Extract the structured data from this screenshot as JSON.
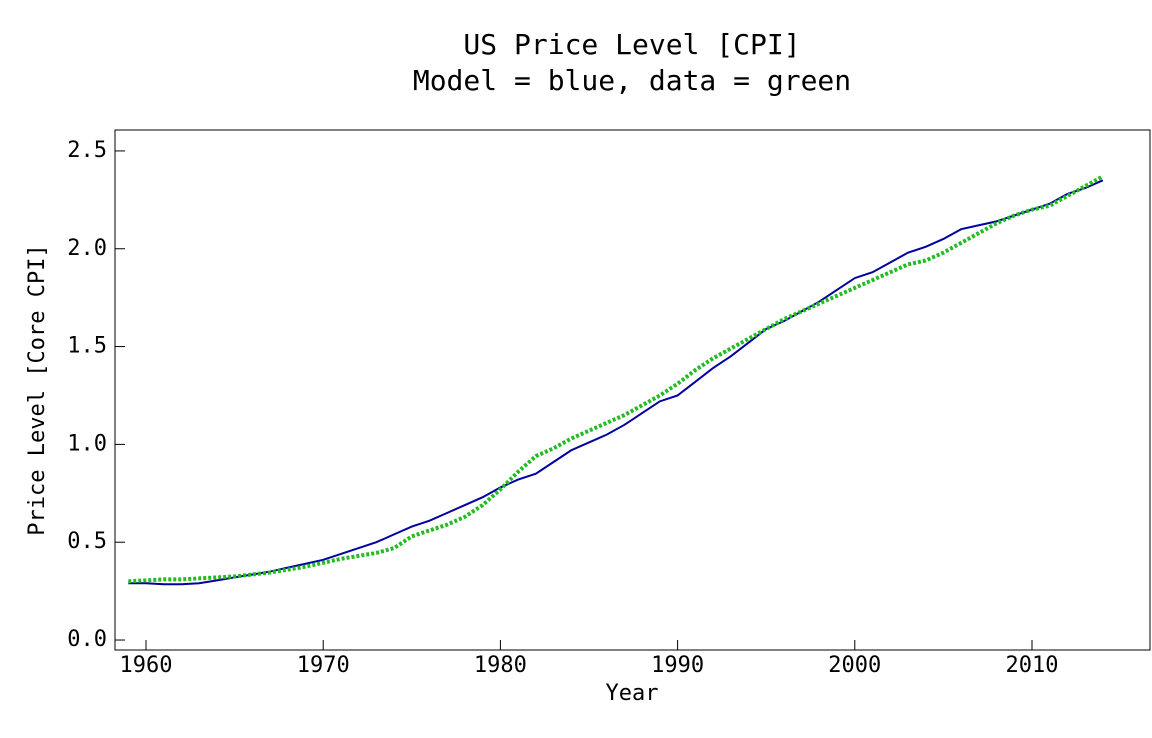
{
  "chart_data": {
    "type": "line",
    "title": "US Price Level [CPI]",
    "subtitle": "Model = blue, data = green",
    "xlabel": "Year",
    "ylabel": "Price Level [Core CPI]",
    "x": [
      1959,
      1960,
      1961,
      1962,
      1963,
      1964,
      1965,
      1966,
      1967,
      1968,
      1969,
      1970,
      1971,
      1972,
      1973,
      1974,
      1975,
      1976,
      1977,
      1978,
      1979,
      1980,
      1981,
      1982,
      1983,
      1984,
      1985,
      1986,
      1987,
      1988,
      1989,
      1990,
      1991,
      1992,
      1993,
      1994,
      1995,
      1996,
      1997,
      1998,
      1999,
      2000,
      2001,
      2002,
      2003,
      2004,
      2005,
      2006,
      2007,
      2008,
      2009,
      2010,
      2011,
      2012,
      2013,
      2014
    ],
    "series": [
      {
        "color": "#0000a0",
        "style": "solid",
        "values": [
          0.29,
          0.29,
          0.285,
          0.285,
          0.29,
          0.305,
          0.32,
          0.335,
          0.35,
          0.37,
          0.39,
          0.41,
          0.44,
          0.47,
          0.5,
          0.54,
          0.58,
          0.61,
          0.65,
          0.69,
          0.73,
          0.78,
          0.82,
          0.85,
          0.91,
          0.97,
          1.01,
          1.05,
          1.1,
          1.16,
          1.22,
          1.25,
          1.32,
          1.39,
          1.45,
          1.52,
          1.59,
          1.63,
          1.68,
          1.73,
          1.79,
          1.85,
          1.88,
          1.93,
          1.98,
          2.01,
          2.05,
          2.1,
          2.12,
          2.14,
          2.17,
          2.2,
          2.23,
          2.28,
          2.31,
          2.35
        ]
      },
      {
        "color": "#22bb22",
        "style": "dotted",
        "values": [
          0.3,
          0.305,
          0.31,
          0.31,
          0.315,
          0.32,
          0.325,
          0.335,
          0.345,
          0.36,
          0.375,
          0.395,
          0.415,
          0.43,
          0.445,
          0.47,
          0.53,
          0.56,
          0.59,
          0.63,
          0.69,
          0.77,
          0.86,
          0.94,
          0.98,
          1.03,
          1.07,
          1.11,
          1.15,
          1.2,
          1.25,
          1.31,
          1.38,
          1.44,
          1.49,
          1.54,
          1.59,
          1.64,
          1.68,
          1.72,
          1.76,
          1.8,
          1.84,
          1.88,
          1.92,
          1.94,
          1.98,
          2.03,
          2.08,
          2.13,
          2.17,
          2.2,
          2.22,
          2.27,
          2.32,
          2.37
        ]
      }
    ],
    "xlim": [
      1958.25,
      2016.66
    ],
    "ylim": [
      -0.051,
      2.607
    ],
    "xticks": [
      1960,
      1970,
      1980,
      1990,
      2000,
      2010
    ],
    "yticks": [
      {
        "value": 0,
        "label": "0.0"
      },
      0.5,
      {
        "value": 1,
        "label": "1.0"
      },
      1.5,
      {
        "value": 2,
        "label": "2.0"
      },
      2.5
    ]
  }
}
